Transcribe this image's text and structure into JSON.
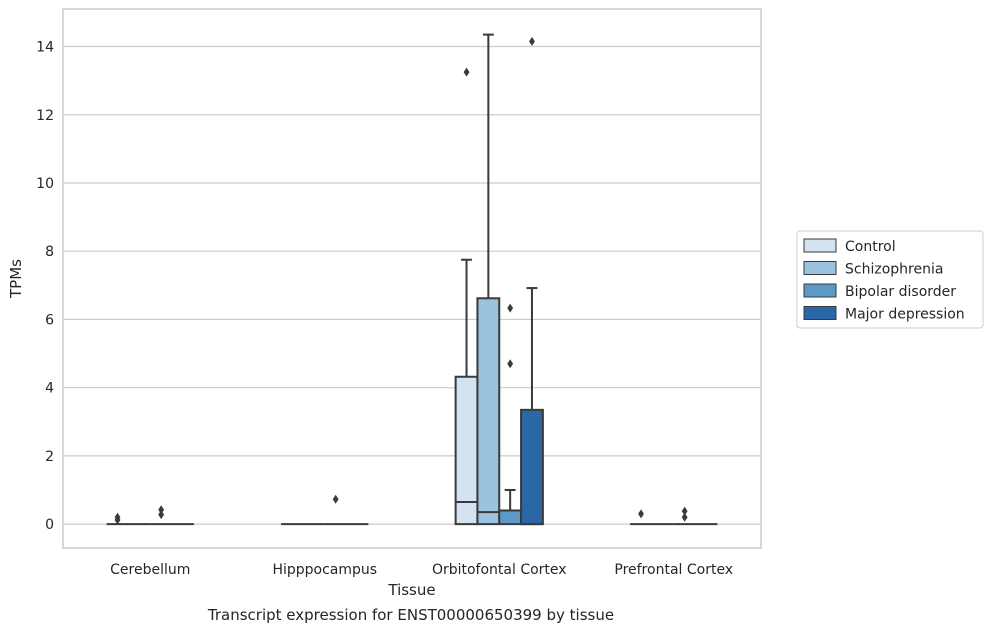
{
  "chart_data": {
    "type": "box",
    "xlabel": "Tissue",
    "ylabel": "TPMs",
    "caption": "Transcript expression for ENST00000650399 by tissue",
    "ylim": [
      -0.7,
      15.1
    ],
    "yticks": [
      0,
      2,
      4,
      6,
      8,
      10,
      12,
      14
    ],
    "grid": "horizontal",
    "legend_position": "right",
    "categories": [
      "Cerebellum",
      "Hipppocampus",
      "Orbitofontal Cortex",
      "Prefrontal Cortex"
    ],
    "series": [
      {
        "name": "Control",
        "color": "#d3e3f2",
        "boxes": [
          {
            "min": 0,
            "q1": 0,
            "median": 0,
            "q3": 0,
            "max": 0,
            "outliers": [
              0.12,
              0.2
            ]
          },
          {
            "min": 0,
            "q1": 0,
            "median": 0,
            "q3": 0,
            "max": 0,
            "outliers": []
          },
          {
            "min": 0,
            "q1": 0,
            "median": 0.65,
            "q3": 4.32,
            "max": 7.75,
            "outliers": [
              13.25
            ]
          },
          {
            "min": 0,
            "q1": 0,
            "median": 0,
            "q3": 0,
            "max": 0,
            "outliers": [
              0.3
            ]
          }
        ]
      },
      {
        "name": "Schizophrenia",
        "color": "#9cc3de",
        "boxes": [
          {
            "min": 0,
            "q1": 0,
            "median": 0,
            "q3": 0,
            "max": 0,
            "outliers": []
          },
          {
            "min": 0,
            "q1": 0,
            "median": 0,
            "q3": 0,
            "max": 0,
            "outliers": []
          },
          {
            "min": 0,
            "q1": 0,
            "median": 0.35,
            "q3": 6.62,
            "max": 14.35,
            "outliers": []
          },
          {
            "min": 0,
            "q1": 0,
            "median": 0,
            "q3": 0,
            "max": 0,
            "outliers": []
          }
        ]
      },
      {
        "name": "Bipolar disorder",
        "color": "#5b9ac7",
        "boxes": [
          {
            "min": 0,
            "q1": 0,
            "median": 0,
            "q3": 0,
            "max": 0,
            "outliers": [
              0.28,
              0.42
            ]
          },
          {
            "min": 0,
            "q1": 0,
            "median": 0,
            "q3": 0,
            "max": 0,
            "outliers": [
              0.73
            ]
          },
          {
            "min": 0,
            "q1": 0,
            "median": 0.4,
            "q3": 0.4,
            "max": 1.0,
            "outliers": [
              4.7,
              6.33
            ]
          },
          {
            "min": 0,
            "q1": 0,
            "median": 0,
            "q3": 0,
            "max": 0,
            "outliers": [
              0.2,
              0.38
            ]
          }
        ]
      },
      {
        "name": "Major depression",
        "color": "#2b66a6",
        "boxes": [
          {
            "min": 0,
            "q1": 0,
            "median": 0,
            "q3": 0,
            "max": 0,
            "outliers": []
          },
          {
            "min": 0,
            "q1": 0,
            "median": 0,
            "q3": 0,
            "max": 0,
            "outliers": []
          },
          {
            "min": 0,
            "q1": 0,
            "median": 0,
            "q3": 3.35,
            "max": 6.92,
            "outliers": [
              14.15
            ]
          },
          {
            "min": 0,
            "q1": 0,
            "median": 0,
            "q3": 0,
            "max": 0,
            "outliers": []
          }
        ]
      }
    ]
  }
}
